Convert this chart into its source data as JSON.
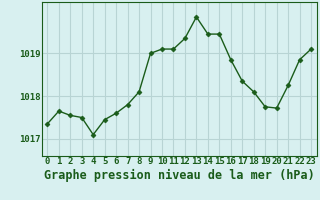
{
  "x": [
    0,
    1,
    2,
    3,
    4,
    5,
    6,
    7,
    8,
    9,
    10,
    11,
    12,
    13,
    14,
    15,
    16,
    17,
    18,
    19,
    20,
    21,
    22,
    23
  ],
  "y": [
    1017.35,
    1017.65,
    1017.55,
    1017.5,
    1017.1,
    1017.45,
    1017.6,
    1017.8,
    1018.1,
    1019.0,
    1019.1,
    1019.1,
    1019.35,
    1019.85,
    1019.45,
    1019.45,
    1018.85,
    1018.35,
    1018.1,
    1017.75,
    1017.72,
    1018.25,
    1018.85,
    1019.1
  ],
  "line_color": "#1a5c1a",
  "marker": "D",
  "marker_size": 2.5,
  "bg_color": "#d8f0f0",
  "grid_color": "#b8d4d4",
  "title": "Graphe pression niveau de la mer (hPa)",
  "yticks": [
    1017,
    1018,
    1019
  ],
  "ylim": [
    1016.6,
    1020.2
  ],
  "xlim": [
    -0.5,
    23.5
  ],
  "xtick_labels": [
    "0",
    "1",
    "2",
    "3",
    "4",
    "5",
    "6",
    "7",
    "8",
    "9",
    "10",
    "11",
    "12",
    "13",
    "14",
    "15",
    "16",
    "17",
    "18",
    "19",
    "20",
    "21",
    "22",
    "23"
  ],
  "title_fontsize": 8.5,
  "tick_fontsize": 6.5,
  "linewidth": 1.0
}
